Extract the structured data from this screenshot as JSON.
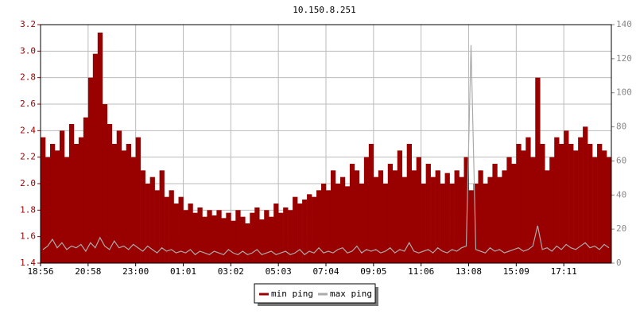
{
  "chart_data": {
    "type": "combo",
    "title": "10.150.8.251",
    "xticks": [
      "18:56",
      "20:58",
      "23:00",
      "01:01",
      "03:02",
      "05:03",
      "07:04",
      "09:05",
      "11:06",
      "13:08",
      "15:09",
      "17:11"
    ],
    "ylim": [
      1.4,
      3.2
    ],
    "yticks": [
      1.4,
      1.6,
      1.8,
      {
        "value": 2,
        "label": "2.0"
      },
      2.2,
      2.4,
      2.6,
      2.8,
      {
        "value": 3,
        "label": "3.0"
      },
      3.2
    ],
    "y2lim": [
      0,
      140
    ],
    "y2ticks": [
      0,
      20,
      40,
      60,
      80,
      100,
      120,
      140
    ],
    "grid": true,
    "legend": "bottom",
    "series": [
      {
        "name": "min ping",
        "type": "bar",
        "color": "#990000",
        "values": [
          2.35,
          2.2,
          2.3,
          2.25,
          2.4,
          2.2,
          2.45,
          2.3,
          2.35,
          2.5,
          2.8,
          2.98,
          3.14,
          2.6,
          2.45,
          2.3,
          2.4,
          2.25,
          2.3,
          2.2,
          2.35,
          2.1,
          2.0,
          2.05,
          1.95,
          2.1,
          1.9,
          1.95,
          1.85,
          1.9,
          1.8,
          1.85,
          1.78,
          1.82,
          1.75,
          1.8,
          1.76,
          1.8,
          1.74,
          1.78,
          1.72,
          1.8,
          1.75,
          1.7,
          1.78,
          1.82,
          1.73,
          1.8,
          1.75,
          1.85,
          1.78,
          1.82,
          1.8,
          1.9,
          1.85,
          1.88,
          1.92,
          1.9,
          1.95,
          2.0,
          1.95,
          2.1,
          2.0,
          2.05,
          1.98,
          2.15,
          2.1,
          2.0,
          2.2,
          2.3,
          2.05,
          2.1,
          2.0,
          2.15,
          2.1,
          2.25,
          2.05,
          2.3,
          2.1,
          2.2,
          2.0,
          2.15,
          2.05,
          2.1,
          2.0,
          2.08,
          2.0,
          2.1,
          2.05,
          2.2,
          1.95,
          2.0,
          2.1,
          2.0,
          2.05,
          2.15,
          2.05,
          2.1,
          2.2,
          2.15,
          2.3,
          2.25,
          2.35,
          2.2,
          2.8,
          2.3,
          2.1,
          2.2,
          2.35,
          2.3,
          2.4,
          2.3,
          2.25,
          2.35,
          2.43,
          2.3,
          2.2,
          2.3,
          2.25,
          2.2
        ]
      },
      {
        "name": "max ping",
        "type": "line",
        "axis": "y2",
        "color": "#aaaaaa",
        "values": [
          8,
          10,
          14,
          9,
          12,
          8,
          10,
          9,
          11,
          7,
          12,
          9,
          15,
          10,
          8,
          13,
          9,
          10,
          8,
          11,
          9,
          7,
          10,
          8,
          6,
          9,
          7,
          8,
          6,
          7,
          6,
          8,
          5,
          7,
          6,
          5,
          7,
          6,
          5,
          8,
          6,
          5,
          7,
          5,
          6,
          8,
          5,
          6,
          7,
          5,
          6,
          7,
          5,
          6,
          8,
          5,
          7,
          6,
          9,
          6,
          7,
          6,
          8,
          9,
          6,
          7,
          10,
          6,
          8,
          7,
          8,
          6,
          7,
          9,
          6,
          8,
          7,
          12,
          7,
          6,
          7,
          8,
          6,
          9,
          7,
          6,
          8,
          7,
          9,
          10,
          128,
          8,
          7,
          6,
          9,
          7,
          8,
          6,
          7,
          8,
          9,
          7,
          8,
          10,
          22,
          8,
          9,
          7,
          10,
          8,
          11,
          9,
          8,
          10,
          12,
          9,
          10,
          8,
          11,
          9
        ]
      }
    ]
  }
}
